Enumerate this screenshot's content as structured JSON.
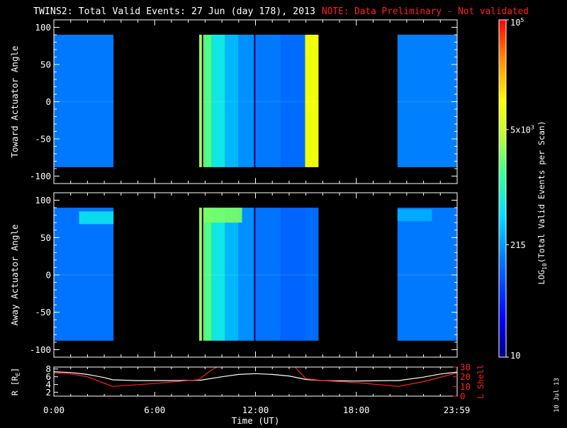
{
  "title": {
    "main": "TWINS2: Total Valid Events: 27 Jun (day 178), 2013",
    "note": "NOTE: Data Preliminary - Not validated"
  },
  "stamp": "10 Jul 13",
  "colors": {
    "note": "#ff2020",
    "orbit_r": "#ffffff",
    "orbit_l": "#ff2020",
    "frame": "#ffffff"
  },
  "chart_data": [
    {
      "type": "heatmap",
      "name": "toward-panel",
      "ylabel": "Toward Actuator Angle",
      "ylim": [
        -110,
        110
      ],
      "yticks": [
        100,
        50,
        0,
        -50,
        -100
      ],
      "xlim": [
        0,
        24
      ],
      "data_angle_range": [
        -88,
        90
      ],
      "blocks": [
        {
          "start": 0.0,
          "end": 3.55,
          "level": 0.29
        },
        {
          "start": 8.65,
          "end": 8.95,
          "level": 0.64
        },
        {
          "start": 8.95,
          "end": 9.4,
          "level": 0.56
        },
        {
          "start": 9.4,
          "end": 10.2,
          "level": 0.45
        },
        {
          "start": 10.2,
          "end": 11.0,
          "level": 0.37
        },
        {
          "start": 11.0,
          "end": 12.0,
          "level": 0.32
        },
        {
          "start": 12.0,
          "end": 13.5,
          "level": 0.29
        },
        {
          "start": 13.5,
          "end": 14.95,
          "level": 0.27
        },
        {
          "start": 14.95,
          "end": 15.75,
          "level": 0.74
        },
        {
          "start": 20.45,
          "end": 24.0,
          "level": 0.3
        }
      ],
      "dark_lines": [
        8.85,
        11.95
      ]
    },
    {
      "type": "heatmap",
      "name": "away-panel",
      "ylabel": "Away Actuator Angle",
      "ylim": [
        -110,
        110
      ],
      "yticks": [
        100,
        50,
        0,
        -50,
        -100
      ],
      "xlim": [
        0,
        24
      ],
      "data_angle_range": [
        -88,
        90
      ],
      "blocks": [
        {
          "start": 0.0,
          "end": 3.55,
          "level": 0.28
        },
        {
          "start": 8.65,
          "end": 8.95,
          "level": 0.64
        },
        {
          "start": 8.95,
          "end": 9.4,
          "level": 0.56
        },
        {
          "start": 9.4,
          "end": 10.2,
          "level": 0.45
        },
        {
          "start": 10.2,
          "end": 11.0,
          "level": 0.37
        },
        {
          "start": 11.0,
          "end": 12.0,
          "level": 0.32
        },
        {
          "start": 12.0,
          "end": 13.5,
          "level": 0.28
        },
        {
          "start": 13.5,
          "end": 14.95,
          "level": 0.26
        },
        {
          "start": 14.95,
          "end": 15.75,
          "level": 0.27
        },
        {
          "start": 20.45,
          "end": 24.0,
          "level": 0.29
        }
      ],
      "highlights": [
        {
          "start": 1.5,
          "end": 3.55,
          "angle_min": 68,
          "angle_max": 85,
          "level": 0.44
        },
        {
          "start": 8.95,
          "end": 11.2,
          "angle_min": 70,
          "angle_max": 90,
          "level": 0.6
        },
        {
          "start": 20.45,
          "end": 22.5,
          "angle_min": 72,
          "angle_max": 88,
          "level": 0.36
        }
      ],
      "dark_lines": [
        8.85,
        11.95
      ]
    },
    {
      "type": "line",
      "name": "orbit-panel",
      "xlabel": "Time (UT)",
      "xlim": [
        0,
        24
      ],
      "xtick_labels": [
        "0:00",
        "6:00",
        "12:00",
        "18:00",
        "23:59"
      ],
      "xticks": [
        0,
        6,
        12,
        18,
        23.98
      ],
      "ylabel_left": "R [R",
      "ylabel_left_sub": "E",
      "ylabel_left_end": "]",
      "ylim_left": [
        1,
        8.5
      ],
      "yticks_left": [
        2,
        4,
        6,
        8
      ],
      "ylabel_right": "L Shell",
      "ylim_right": [
        0,
        30
      ],
      "yticks_right": [
        0,
        10,
        20,
        30
      ],
      "series": [
        {
          "axis": "left",
          "x": [
            0,
            1,
            2,
            3,
            3.5,
            5,
            7,
            8.7,
            10,
            11,
            12,
            13,
            14,
            15,
            16,
            18,
            20,
            20.5,
            22,
            23,
            24
          ],
          "y": [
            7.3,
            7.1,
            6.6,
            5.8,
            5.2,
            5.0,
            5.0,
            5.1,
            6.0,
            6.6,
            6.8,
            6.6,
            6.2,
            5.3,
            5.0,
            4.9,
            5.0,
            5.0,
            5.9,
            6.7,
            7.2
          ]
        },
        {
          "axis": "right",
          "x": [
            0,
            1,
            2,
            3.5,
            6,
            8.6,
            9.3,
            9.8,
            14.3,
            15.0,
            16,
            18,
            20.5,
            22,
            24
          ],
          "y": [
            24,
            23,
            20,
            10,
            13,
            17,
            26,
            31,
            31,
            18,
            16,
            14,
            10,
            15,
            24
          ]
        }
      ]
    },
    {
      "type": "colorbar",
      "name": "colorbar",
      "label": "LOG",
      "label_sub": "10",
      "label_rest": "(Total Valid Events per Scan)",
      "scale": "log",
      "range": [
        10,
        100000
      ],
      "ticks": [
        {
          "value": 10,
          "base": "10",
          "sup": ""
        },
        {
          "value": 215,
          "base": "215",
          "sup": ""
        },
        {
          "value": 5000,
          "base": "5x10",
          "sup": "3"
        },
        {
          "value": 100000,
          "base": "10",
          "sup": "5"
        }
      ]
    }
  ]
}
